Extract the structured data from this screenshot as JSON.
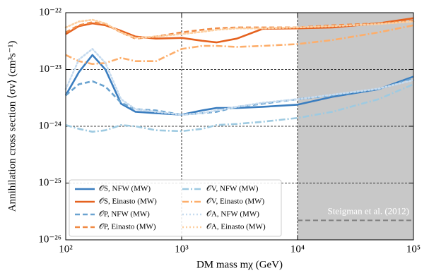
{
  "chart_data": {
    "type": "line",
    "xlabel": "DM mass mχ (GeV)",
    "ylabel": "Annihilation cross section ⟨σv⟩ (cm³s⁻¹)",
    "xscale": "log",
    "yscale": "log",
    "grid": true,
    "legend_loc": "lower left",
    "xlim": [
      100,
      100000
    ],
    "ylim": [
      1e-26,
      1e-22
    ],
    "xticks": [
      {
        "value": 100,
        "label": "10²"
      },
      {
        "value": 1000,
        "label": "10³"
      },
      {
        "value": 10000,
        "label": "10⁴"
      },
      {
        "value": 100000,
        "label": "10⁵"
      }
    ],
    "yticks": [
      {
        "value": 1e-26,
        "label": "10⁻²⁶"
      },
      {
        "value": 1e-25,
        "label": "10⁻²⁵"
      },
      {
        "value": 1e-24,
        "label": "10⁻²⁴"
      },
      {
        "value": 1e-23,
        "label": "10⁻²³"
      },
      {
        "value": 1e-22,
        "label": "10⁻²²"
      }
    ],
    "shaded_xrange": [
      10000,
      100000
    ],
    "shade_color": "#c8c8c8",
    "reference_line": {
      "label": "Steigman et al. (2012)",
      "y": 2.2e-26,
      "x": [
        10000,
        100000
      ],
      "color": "#808080"
    },
    "x": [
      100,
      130,
      170,
      220,
      300,
      400,
      600,
      1000,
      1500,
      2000,
      3000,
      5000,
      10000,
      20000,
      50000,
      100000
    ],
    "series": [
      {
        "name": "𝒪S, NFW (MW)",
        "color": "#3a7dbf",
        "dash": "solid",
        "values": [
          3.5e-24,
          9e-24,
          1.8e-23,
          1e-23,
          2.5e-24,
          1.8e-24,
          1.7e-24,
          1.6e-24,
          1.9e-24,
          2.1e-24,
          2.1e-24,
          2.2e-24,
          2.4e-24,
          3.3e-24,
          4.5e-24,
          7.5e-24
        ]
      },
      {
        "name": "𝒪S, Einasto (MW)",
        "color": "#e5621f",
        "dash": "solid",
        "values": [
          4.2e-23,
          5.8e-23,
          6.5e-23,
          6e-23,
          4.8e-23,
          3.8e-23,
          3.5e-23,
          3.6e-23,
          3.2e-23,
          3e-23,
          3.5e-23,
          5.2e-23,
          5.3e-23,
          5.5e-23,
          6.5e-23,
          8e-23
        ]
      },
      {
        "name": "𝒪P, NFW (MW)",
        "color": "#6aa3d0",
        "dash": "dashed",
        "values": [
          3.5e-24,
          5.5e-24,
          6.2e-24,
          5e-24,
          2.6e-24,
          2e-24,
          1.9e-24,
          1.6e-24,
          1.7e-24,
          1.8e-24,
          2.2e-24,
          2.5e-24,
          3e-24,
          3.5e-24,
          4.5e-24,
          7e-24
        ]
      },
      {
        "name": "𝒪P, Einasto (MW)",
        "color": "#f08a44",
        "dash": "dashed",
        "values": [
          4.5e-23,
          6e-23,
          6.8e-23,
          6.3e-23,
          4.5e-23,
          3.5e-23,
          3.8e-23,
          4.5e-23,
          5e-23,
          5.3e-23,
          5.5e-23,
          5.5e-23,
          5.5e-23,
          6e-23,
          6.5e-23,
          7.2e-23
        ]
      },
      {
        "name": "𝒪V, NFW (MW)",
        "color": "#9ecae1",
        "dash": "dashdot",
        "values": [
          1.05e-24,
          9e-25,
          8e-25,
          8.5e-25,
          1.05e-24,
          1e-24,
          8.5e-25,
          8.2e-25,
          9e-25,
          1.05e-24,
          1.1e-24,
          1.2e-24,
          1.4e-24,
          1.8e-24,
          3e-24,
          5.5e-24
        ]
      },
      {
        "name": "𝒪V, Einasto (MW)",
        "color": "#fdae6b",
        "dash": "dashdot",
        "values": [
          1.8e-23,
          1.4e-23,
          1.25e-23,
          1.3e-23,
          1.6e-23,
          1.4e-23,
          1.4e-23,
          2.3e-23,
          2.6e-23,
          2.6e-23,
          2.5e-23,
          2.6e-23,
          2.8e-23,
          3.3e-23,
          4.5e-23,
          6e-23
        ]
      },
      {
        "name": "𝒪A, NFW (MW)",
        "color": "#c6dbef",
        "dash": "dotted",
        "values": [
          4.5e-24,
          1.5e-23,
          2.3e-23,
          1.3e-23,
          3e-24,
          2e-24,
          1.8e-24,
          1.6e-24,
          1.7e-24,
          1.9e-24,
          2.2e-24,
          2.6e-24,
          3e-24,
          3.6e-24,
          4.6e-24,
          6.5e-24
        ]
      },
      {
        "name": "𝒪A, Einasto (MW)",
        "color": "#fdd0a2",
        "dash": "dotted",
        "values": [
          5.5e-23,
          7e-23,
          7.5e-23,
          6.5e-23,
          4.5e-23,
          3.6e-23,
          3.8e-23,
          4.2e-23,
          4.6e-23,
          5e-23,
          5.3e-23,
          5.3e-23,
          5.5e-23,
          5.8e-23,
          6.3e-23,
          7e-23
        ]
      }
    ]
  }
}
